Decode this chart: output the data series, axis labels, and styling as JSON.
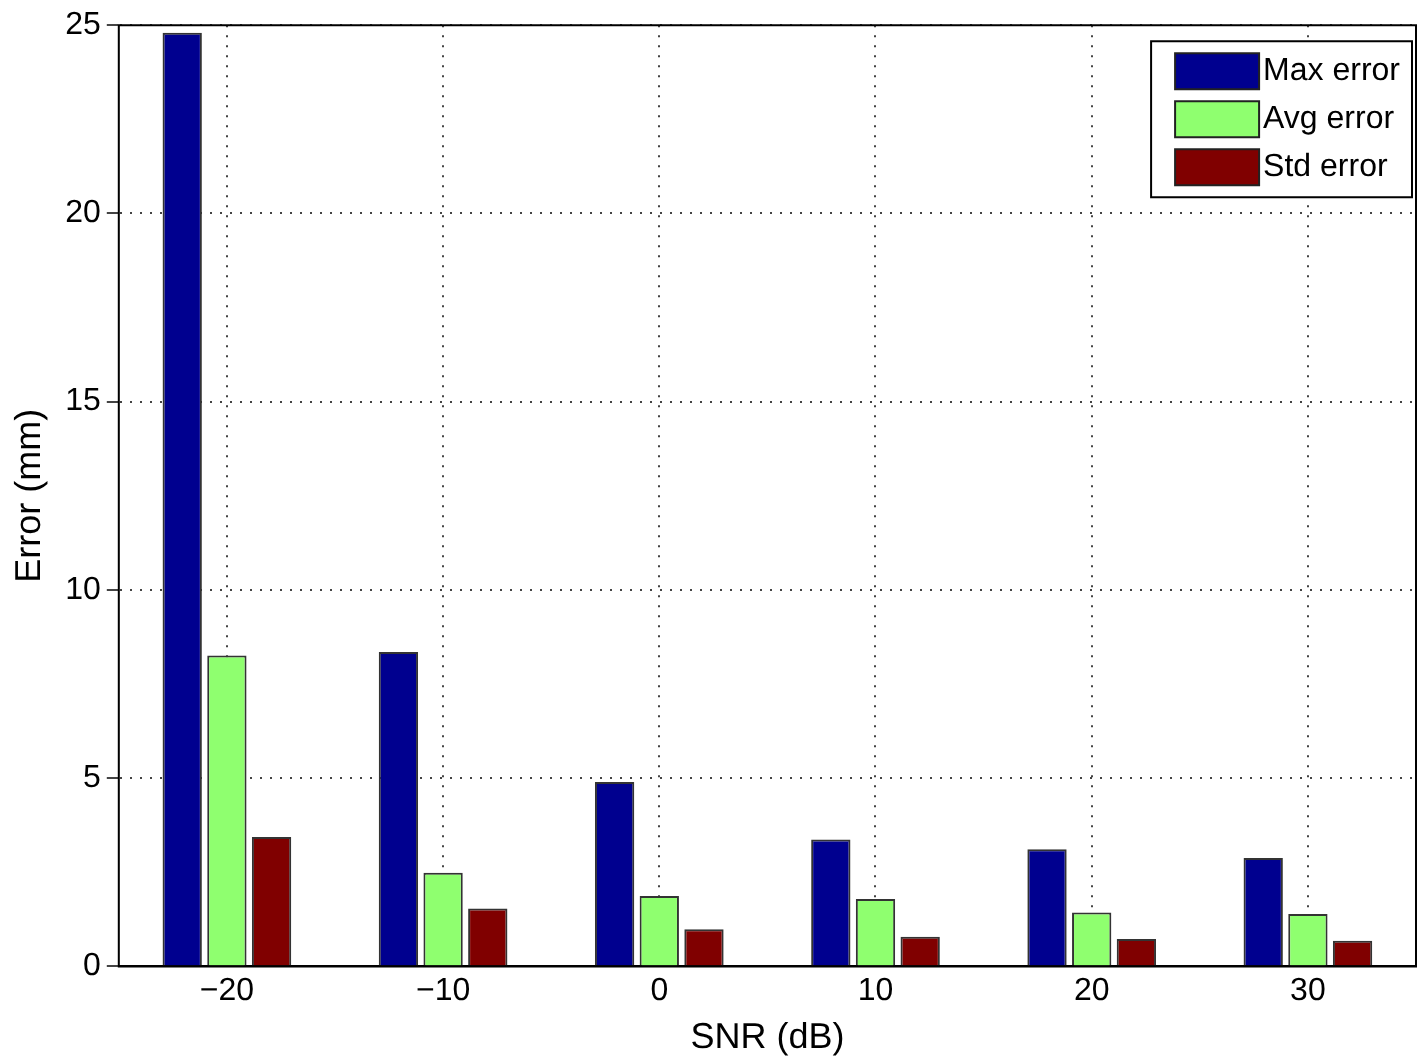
{
  "chart_data": {
    "type": "bar",
    "xlabel": "SNR (dB)",
    "ylabel": "Error (mm)",
    "categories": [
      "−20",
      "−10",
      "0",
      "10",
      "20",
      "30"
    ],
    "series": [
      {
        "name": "Max error",
        "color": "#00008f",
        "values": [
          24.8,
          8.35,
          4.9,
          3.37,
          3.11,
          2.88
        ]
      },
      {
        "name": "Avg error",
        "color": "#8fff6f",
        "values": [
          8.26,
          2.49,
          1.87,
          1.79,
          1.43,
          1.39
        ]
      },
      {
        "name": "Std error",
        "color": "#800000",
        "values": [
          3.44,
          1.54,
          0.99,
          0.79,
          0.73,
          0.68
        ]
      }
    ],
    "ylim": [
      0,
      25
    ],
    "yticks": [
      0,
      5,
      10,
      15,
      20,
      25
    ],
    "grid": true,
    "legend": "top right"
  }
}
